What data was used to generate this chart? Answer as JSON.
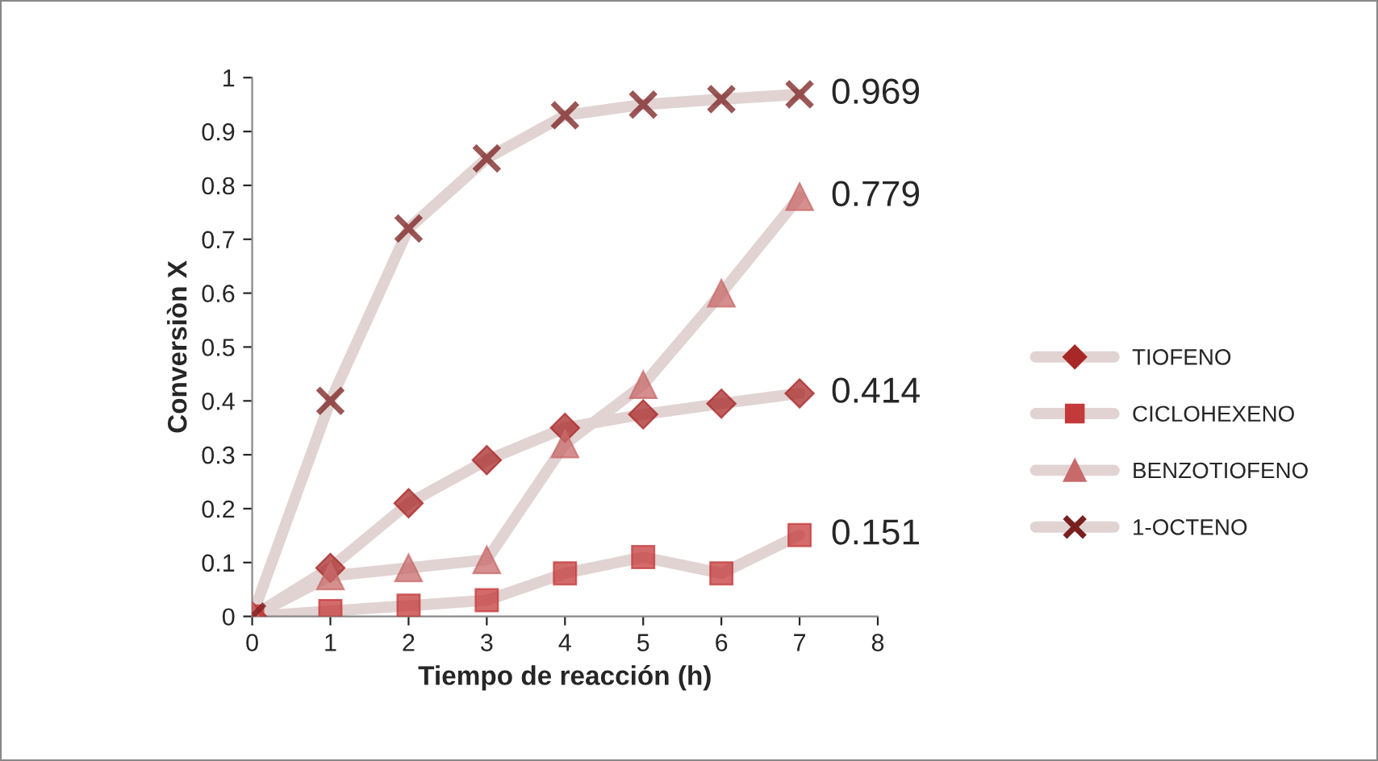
{
  "chart_data": {
    "type": "line",
    "xlabel": "Tiempo de reacción (h)",
    "ylabel": "Conversiòn X",
    "x": [
      0,
      1,
      2,
      3,
      4,
      5,
      6,
      7
    ],
    "xlim": [
      0,
      8
    ],
    "xticks": [
      0,
      1,
      2,
      3,
      4,
      5,
      6,
      7,
      8
    ],
    "ylim": [
      0,
      1
    ],
    "yticks": [
      0,
      0.1,
      0.2,
      0.3,
      0.4,
      0.5,
      0.6,
      0.7,
      0.8,
      0.9,
      1
    ],
    "grid": false,
    "legend": "right",
    "series": [
      {
        "name": "TIOFENO",
        "color": "#a82828",
        "marker": "diamond",
        "values": [
          0,
          0.09,
          0.21,
          0.29,
          0.35,
          0.375,
          0.395,
          0.414
        ],
        "value_labels": [
          null,
          null,
          null,
          null,
          null,
          null,
          null,
          "0.414"
        ]
      },
      {
        "name": "CICLOHEXENO",
        "color": "#c43a3a",
        "marker": "square",
        "values": [
          0,
          0.01,
          0.02,
          0.03,
          0.08,
          0.11,
          0.08,
          0.151
        ],
        "value_labels": [
          null,
          null,
          null,
          null,
          null,
          null,
          null,
          "0.151"
        ]
      },
      {
        "name": "BENZOTIOFENO",
        "color": "#c86a6a",
        "marker": "triangle",
        "values": [
          0,
          0.075,
          0.09,
          0.105,
          0.32,
          0.43,
          0.6,
          0.779
        ],
        "value_labels": [
          null,
          null,
          null,
          null,
          null,
          null,
          null,
          "0.779"
        ]
      },
      {
        "name": "1-OCTENO",
        "color": "#7a1e1e",
        "marker": "cross",
        "values": [
          0,
          0.4,
          0.72,
          0.85,
          0.93,
          0.95,
          0.96,
          0.969
        ],
        "value_labels": [
          null,
          null,
          null,
          null,
          null,
          null,
          null,
          "0.969"
        ]
      }
    ]
  }
}
